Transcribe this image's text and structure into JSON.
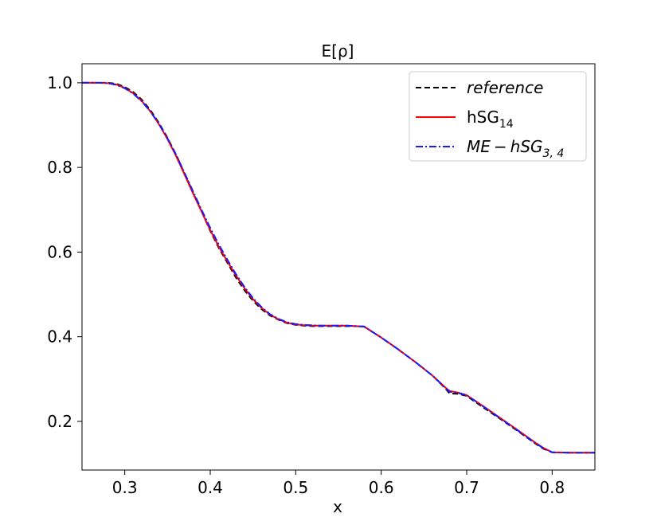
{
  "chart_data": {
    "type": "line",
    "title": "E[ρ]",
    "xlabel": "x",
    "ylabel": "",
    "xlim": [
      0.25,
      0.85
    ],
    "ylim": [
      0.085,
      1.045
    ],
    "xticks": [
      0.3,
      0.4,
      0.5,
      0.6,
      0.7,
      0.8
    ],
    "xtick_labels": [
      "0.3",
      "0.4",
      "0.5",
      "0.6",
      "0.7",
      "0.8"
    ],
    "yticks": [
      0.2,
      0.4,
      0.6,
      0.8,
      1.0
    ],
    "ytick_labels": [
      "0.2",
      "0.4",
      "0.6",
      "0.8",
      "1.0"
    ],
    "grid": false,
    "legend_position": "top-right",
    "series": [
      {
        "name": "reference",
        "legend_main": "reference",
        "legend_sub": "",
        "legend_main2": "",
        "legend_sub2": "",
        "italic": true,
        "color": "#000000",
        "dash": "7,4",
        "x": [
          0.25,
          0.27,
          0.28,
          0.29,
          0.3,
          0.31,
          0.32,
          0.33,
          0.34,
          0.35,
          0.36,
          0.37,
          0.38,
          0.39,
          0.4,
          0.41,
          0.42,
          0.43,
          0.44,
          0.45,
          0.46,
          0.47,
          0.48,
          0.49,
          0.5,
          0.51,
          0.52,
          0.53,
          0.54,
          0.55,
          0.56,
          0.57,
          0.58,
          0.6,
          0.62,
          0.64,
          0.66,
          0.675,
          0.68,
          0.69,
          0.7,
          0.72,
          0.74,
          0.76,
          0.78,
          0.79,
          0.8,
          0.82,
          0.85
        ],
        "y": [
          1.0,
          1.0,
          1.0,
          0.998,
          0.99,
          0.978,
          0.96,
          0.935,
          0.905,
          0.87,
          0.83,
          0.785,
          0.74,
          0.695,
          0.65,
          0.61,
          0.575,
          0.54,
          0.51,
          0.485,
          0.465,
          0.45,
          0.44,
          0.432,
          0.428,
          0.426,
          0.425,
          0.425,
          0.425,
          0.425,
          0.425,
          0.425,
          0.424,
          0.398,
          0.37,
          0.34,
          0.308,
          0.278,
          0.266,
          0.265,
          0.26,
          0.232,
          0.205,
          0.177,
          0.148,
          0.135,
          0.127,
          0.126,
          0.126
        ]
      },
      {
        "name": "hSG14",
        "legend_main": "hSG",
        "legend_sub": "14",
        "legend_main2": "",
        "legend_sub2": "",
        "italic": false,
        "color": "#ff0000",
        "dash": "",
        "x": [
          0.25,
          0.27,
          0.28,
          0.29,
          0.3,
          0.31,
          0.32,
          0.33,
          0.34,
          0.35,
          0.36,
          0.37,
          0.38,
          0.39,
          0.4,
          0.41,
          0.42,
          0.43,
          0.44,
          0.45,
          0.46,
          0.47,
          0.48,
          0.49,
          0.5,
          0.51,
          0.52,
          0.53,
          0.54,
          0.55,
          0.56,
          0.57,
          0.58,
          0.6,
          0.62,
          0.64,
          0.66,
          0.675,
          0.68,
          0.69,
          0.7,
          0.72,
          0.74,
          0.76,
          0.78,
          0.79,
          0.8,
          0.82,
          0.85
        ],
        "y": [
          1.0,
          1.0,
          0.999,
          0.996,
          0.988,
          0.975,
          0.957,
          0.932,
          0.902,
          0.867,
          0.827,
          0.783,
          0.738,
          0.695,
          0.652,
          0.613,
          0.578,
          0.545,
          0.515,
          0.489,
          0.468,
          0.452,
          0.441,
          0.433,
          0.429,
          0.427,
          0.426,
          0.426,
          0.426,
          0.426,
          0.426,
          0.425,
          0.424,
          0.398,
          0.37,
          0.34,
          0.308,
          0.28,
          0.272,
          0.268,
          0.262,
          0.235,
          0.207,
          0.179,
          0.15,
          0.137,
          0.127,
          0.126,
          0.126
        ]
      },
      {
        "name": "ME-hSG3,4",
        "legend_main": "ME",
        "legend_sub": "",
        "legend_main2": "hSG",
        "legend_sub2": "3, 4",
        "italic": true,
        "color": "#1a1aff",
        "dash": "9,3,2,3",
        "x": [
          0.25,
          0.27,
          0.28,
          0.29,
          0.3,
          0.31,
          0.32,
          0.33,
          0.34,
          0.35,
          0.36,
          0.37,
          0.38,
          0.39,
          0.4,
          0.41,
          0.42,
          0.43,
          0.44,
          0.45,
          0.46,
          0.47,
          0.48,
          0.49,
          0.5,
          0.51,
          0.52,
          0.53,
          0.54,
          0.55,
          0.56,
          0.57,
          0.58,
          0.6,
          0.62,
          0.64,
          0.66,
          0.675,
          0.68,
          0.69,
          0.7,
          0.72,
          0.74,
          0.76,
          0.78,
          0.79,
          0.8,
          0.82,
          0.85
        ],
        "y": [
          1.0,
          1.0,
          0.999,
          0.995,
          0.987,
          0.974,
          0.956,
          0.932,
          0.903,
          0.869,
          0.83,
          0.787,
          0.743,
          0.699,
          0.657,
          0.618,
          0.582,
          0.548,
          0.518,
          0.491,
          0.47,
          0.453,
          0.442,
          0.434,
          0.43,
          0.428,
          0.427,
          0.426,
          0.426,
          0.426,
          0.426,
          0.425,
          0.424,
          0.398,
          0.37,
          0.34,
          0.308,
          0.279,
          0.27,
          0.267,
          0.262,
          0.234,
          0.206,
          0.178,
          0.149,
          0.136,
          0.127,
          0.126,
          0.126
        ]
      }
    ]
  }
}
